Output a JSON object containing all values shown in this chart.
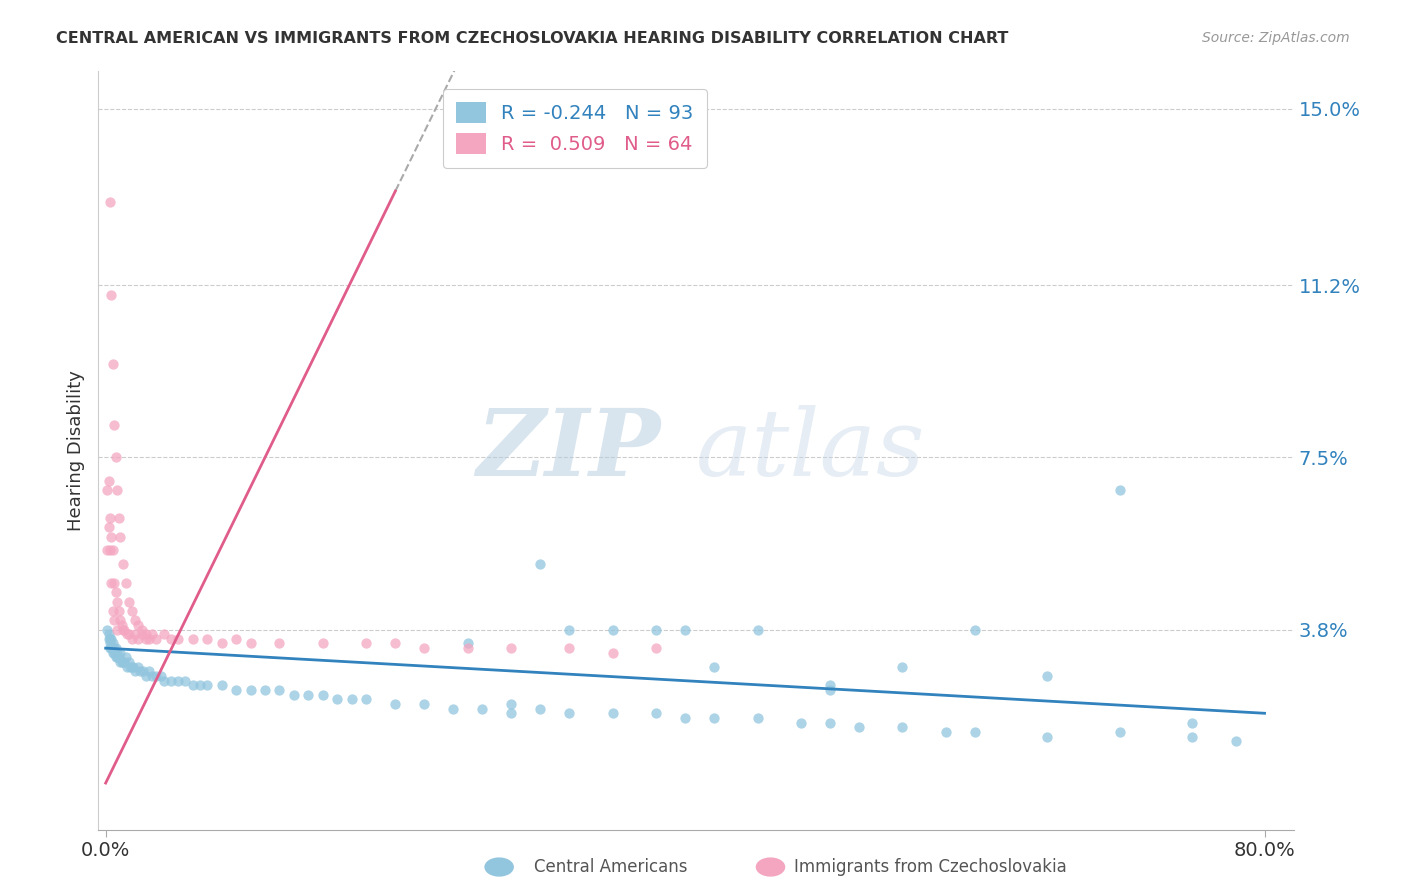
{
  "title": "CENTRAL AMERICAN VS IMMIGRANTS FROM CZECHOSLOVAKIA HEARING DISABILITY CORRELATION CHART",
  "source": "Source: ZipAtlas.com",
  "ylabel": "Hearing Disability",
  "xlim_min": -0.005,
  "xlim_max": 0.82,
  "ylim_min": -0.005,
  "ylim_max": 0.158,
  "yticks": [
    0.038,
    0.075,
    0.112,
    0.15
  ],
  "ytick_labels": [
    "3.8%",
    "7.5%",
    "11.2%",
    "15.0%"
  ],
  "xticks": [
    0.0,
    0.8
  ],
  "xtick_labels": [
    "0.0%",
    "80.0%"
  ],
  "blue_r": -0.244,
  "blue_n": 93,
  "pink_r": 0.509,
  "pink_n": 64,
  "blue_color": "#92c5de",
  "pink_color": "#f4a6c0",
  "blue_line_color": "#3182bd",
  "pink_line_color": "#e05c8a",
  "background_color": "#ffffff",
  "grid_color": "#cccccc",
  "legend_label_blue": "Central Americans",
  "legend_label_pink": "Immigrants from Czechoslovakia",
  "watermark_zip": "ZIP",
  "watermark_atlas": "atlas",
  "blue_scatter_x": [
    0.001,
    0.002,
    0.002,
    0.003,
    0.003,
    0.003,
    0.004,
    0.004,
    0.005,
    0.005,
    0.006,
    0.006,
    0.007,
    0.007,
    0.008,
    0.008,
    0.009,
    0.01,
    0.01,
    0.011,
    0.012,
    0.013,
    0.014,
    0.015,
    0.016,
    0.017,
    0.018,
    0.019,
    0.02,
    0.022,
    0.024,
    0.026,
    0.028,
    0.03,
    0.032,
    0.035,
    0.038,
    0.04,
    0.045,
    0.05,
    0.055,
    0.06,
    0.065,
    0.07,
    0.08,
    0.09,
    0.1,
    0.11,
    0.12,
    0.13,
    0.14,
    0.15,
    0.16,
    0.17,
    0.18,
    0.2,
    0.22,
    0.24,
    0.26,
    0.28,
    0.3,
    0.32,
    0.35,
    0.38,
    0.4,
    0.42,
    0.45,
    0.48,
    0.5,
    0.52,
    0.55,
    0.58,
    0.6,
    0.65,
    0.7,
    0.75,
    0.78,
    0.4,
    0.55,
    0.7,
    0.3,
    0.35,
    0.25,
    0.45,
    0.5,
    0.38,
    0.32,
    0.28,
    0.42,
    0.5,
    0.6,
    0.65,
    0.75
  ],
  "blue_scatter_y": [
    0.038,
    0.037,
    0.036,
    0.036,
    0.035,
    0.034,
    0.036,
    0.034,
    0.035,
    0.033,
    0.034,
    0.033,
    0.034,
    0.032,
    0.033,
    0.032,
    0.032,
    0.033,
    0.031,
    0.031,
    0.031,
    0.031,
    0.032,
    0.03,
    0.031,
    0.03,
    0.03,
    0.03,
    0.029,
    0.03,
    0.029,
    0.029,
    0.028,
    0.029,
    0.028,
    0.028,
    0.028,
    0.027,
    0.027,
    0.027,
    0.027,
    0.026,
    0.026,
    0.026,
    0.026,
    0.025,
    0.025,
    0.025,
    0.025,
    0.024,
    0.024,
    0.024,
    0.023,
    0.023,
    0.023,
    0.022,
    0.022,
    0.021,
    0.021,
    0.02,
    0.021,
    0.02,
    0.02,
    0.02,
    0.019,
    0.019,
    0.019,
    0.018,
    0.018,
    0.017,
    0.017,
    0.016,
    0.016,
    0.015,
    0.016,
    0.015,
    0.014,
    0.038,
    0.03,
    0.068,
    0.052,
    0.038,
    0.035,
    0.038,
    0.026,
    0.038,
    0.038,
    0.022,
    0.03,
    0.025,
    0.038,
    0.028,
    0.018
  ],
  "pink_scatter_x": [
    0.001,
    0.001,
    0.002,
    0.002,
    0.003,
    0.003,
    0.004,
    0.004,
    0.005,
    0.005,
    0.006,
    0.006,
    0.007,
    0.008,
    0.008,
    0.009,
    0.01,
    0.011,
    0.012,
    0.013,
    0.015,
    0.016,
    0.018,
    0.02,
    0.022,
    0.025,
    0.028,
    0.03,
    0.003,
    0.004,
    0.005,
    0.006,
    0.007,
    0.008,
    0.009,
    0.01,
    0.012,
    0.014,
    0.016,
    0.018,
    0.02,
    0.022,
    0.025,
    0.028,
    0.032,
    0.035,
    0.04,
    0.045,
    0.05,
    0.06,
    0.07,
    0.08,
    0.09,
    0.1,
    0.12,
    0.15,
    0.18,
    0.2,
    0.22,
    0.25,
    0.28,
    0.32,
    0.35,
    0.38
  ],
  "pink_scatter_y": [
    0.068,
    0.055,
    0.07,
    0.06,
    0.062,
    0.055,
    0.058,
    0.048,
    0.055,
    0.042,
    0.048,
    0.04,
    0.046,
    0.044,
    0.038,
    0.042,
    0.04,
    0.039,
    0.038,
    0.038,
    0.037,
    0.037,
    0.036,
    0.037,
    0.036,
    0.037,
    0.036,
    0.036,
    0.13,
    0.11,
    0.095,
    0.082,
    0.075,
    0.068,
    0.062,
    0.058,
    0.052,
    0.048,
    0.044,
    0.042,
    0.04,
    0.039,
    0.038,
    0.037,
    0.037,
    0.036,
    0.037,
    0.036,
    0.036,
    0.036,
    0.036,
    0.035,
    0.036,
    0.035,
    0.035,
    0.035,
    0.035,
    0.035,
    0.034,
    0.034,
    0.034,
    0.034,
    0.033,
    0.034
  ]
}
